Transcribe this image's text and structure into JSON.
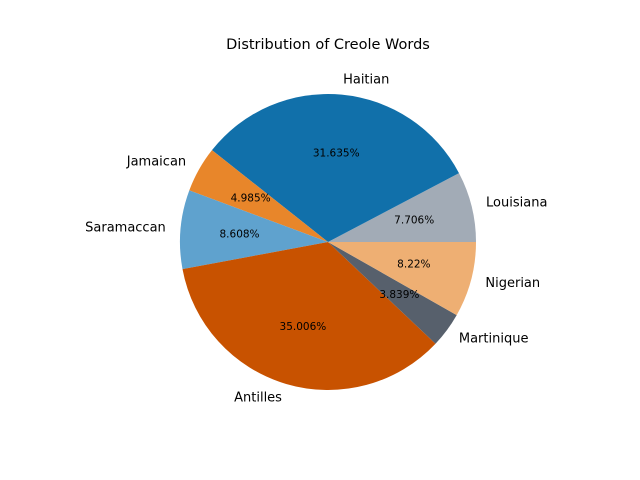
{
  "chart_data": {
    "type": "pie",
    "title": "Distribution of Creole Words",
    "start_angle_deg": 0,
    "direction": "counterclockwise",
    "slices": [
      {
        "label": "Louisiana",
        "value": 7.706,
        "pct_text": "7.706%",
        "color": "#a2abb6"
      },
      {
        "label": "Haitian",
        "value": 31.635,
        "pct_text": "31.635%",
        "color": "#1170aa"
      },
      {
        "label": "Jamaican",
        "value": 4.985,
        "pct_text": "4.985%",
        "color": "#e8862a"
      },
      {
        "label": "Saramaccan",
        "value": 8.608,
        "pct_text": "8.608%",
        "color": "#5fa2ce"
      },
      {
        "label": "Antilles",
        "value": 35.006,
        "pct_text": "35.006%",
        "color": "#c85200"
      },
      {
        "label": "Martinique",
        "value": 3.839,
        "pct_text": "3.839%",
        "color": "#57606c"
      },
      {
        "label": "Nigerian",
        "value": 8.22,
        "pct_text": "8.22%",
        "color": "#eeaf73"
      }
    ]
  }
}
